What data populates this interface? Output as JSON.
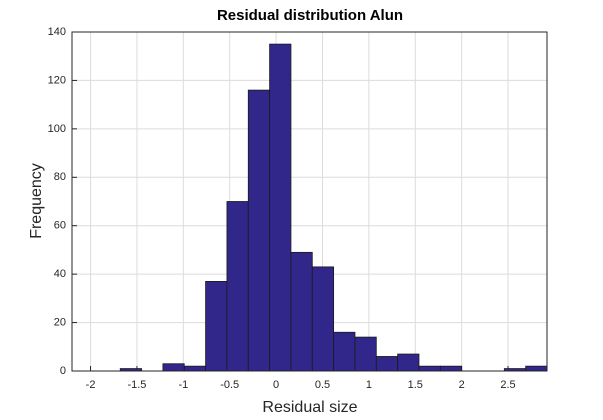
{
  "chart_data": {
    "type": "histogram",
    "title": "Residual distribution Alun",
    "xlabel": "Residual size",
    "ylabel": "Frequency",
    "bins": [
      -1.68,
      -1.45,
      -1.22,
      -0.99,
      -0.76,
      -0.53,
      -0.3,
      -0.07,
      0.16,
      0.39,
      0.62,
      0.85,
      1.08,
      1.31,
      1.54,
      1.77,
      2.0,
      2.23,
      2.46,
      2.69,
      2.92
    ],
    "counts": [
      1,
      0,
      3,
      2,
      37,
      70,
      116,
      135,
      49,
      43,
      16,
      14,
      6,
      7,
      2,
      2,
      0,
      0,
      1,
      2
    ],
    "color": "#31278a",
    "xlim": [
      -2.2,
      2.92
    ],
    "xticks": [
      -2,
      -1.5,
      -1,
      -0.5,
      0,
      0.5,
      1,
      1.5,
      2,
      2.5
    ],
    "ylim": [
      0,
      140
    ],
    "yticks": [
      0,
      20,
      40,
      60,
      80,
      100,
      120,
      140
    ],
    "grid": true
  }
}
